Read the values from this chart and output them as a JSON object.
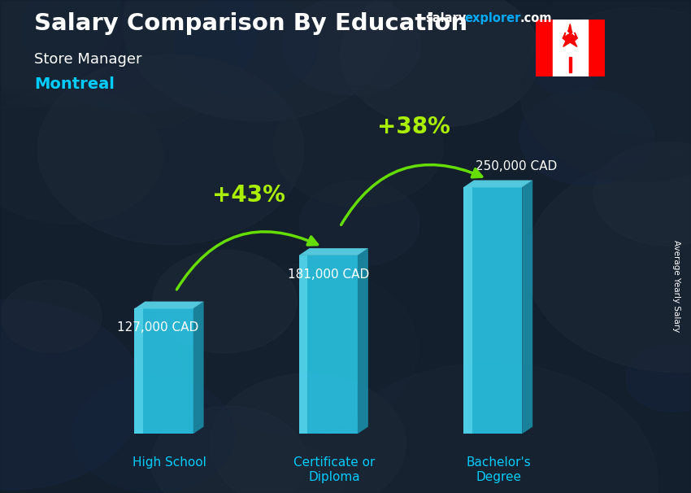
{
  "title_main": "Salary Comparison By Education",
  "title_sub1": "Store Manager",
  "title_sub2": "Montreal",
  "watermark_salary": "salary",
  "watermark_explorer": "explorer",
  "watermark_com": ".com",
  "ylabel_rotated": "Average Yearly Salary",
  "categories": [
    "High School",
    "Certificate or\nDiploma",
    "Bachelor's\nDegree"
  ],
  "values": [
    127000,
    181000,
    250000
  ],
  "value_labels": [
    "127,000 CAD",
    "181,000 CAD",
    "250,000 CAD"
  ],
  "pct_labels": [
    "+43%",
    "+38%"
  ],
  "bar_face_color": "#29c8e8",
  "bar_top_color": "#5ddff5",
  "bar_side_color": "#1a8faa",
  "bar_alpha": 0.88,
  "bg_color": "#1a2535",
  "title_color": "#ffffff",
  "subtitle_color": "#ffffff",
  "city_color": "#00ccff",
  "value_label_color": "#ffffff",
  "pct_color": "#aaee00",
  "arrow_color": "#66dd00",
  "cat_label_color": "#00ccff",
  "watermark_color1": "#ffffff",
  "watermark_color2": "#00aaff",
  "max_val": 290000,
  "bar_width": 0.1,
  "x_positions": [
    0.22,
    0.5,
    0.78
  ],
  "figsize": [
    8.5,
    6.06
  ],
  "dpi": 100
}
